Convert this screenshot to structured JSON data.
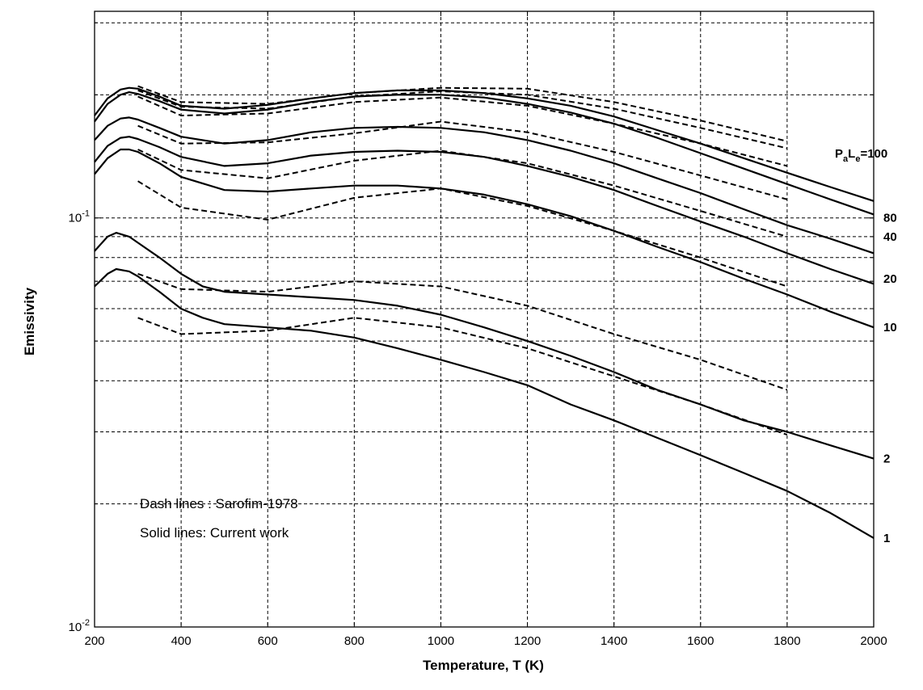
{
  "chart_data": {
    "type": "line",
    "xlabel": "Temperature, T (K)",
    "ylabel": "Emissivity",
    "xlim": [
      200,
      2000
    ],
    "ylim": [
      0.01,
      0.32
    ],
    "y_scale": "log",
    "grid": true,
    "x_ticks": [
      "200",
      "400",
      "600",
      "800",
      "1000",
      "1200",
      "1400",
      "1600",
      "1800",
      "2000"
    ],
    "y_ticks": [
      {
        "value": 0.1,
        "base": "10",
        "exp": "-1"
      },
      {
        "value": 0.01,
        "base": "10",
        "exp": "-2"
      }
    ],
    "param_label": {
      "p": "P",
      "p_sub": "a",
      "l": "L",
      "l_sub": "e",
      "value": "=100"
    },
    "end_labels": [
      {
        "text": "80",
        "y": 0.1
      },
      {
        "text": "40",
        "y": 0.09
      },
      {
        "text": "20",
        "y": 0.071
      },
      {
        "text": "10",
        "y": 0.054
      },
      {
        "text": "2",
        "y": 0.0258
      },
      {
        "text": "1",
        "y": 0.0165
      }
    ],
    "legend": {
      "dash": "Dash lines : Sarofim-1978",
      "solid": "Solid lines: Current work"
    },
    "solid_series": [
      {
        "points": [
          [
            200,
            0.178
          ],
          [
            230,
            0.196
          ],
          [
            260,
            0.206
          ],
          [
            280,
            0.208
          ],
          [
            300,
            0.207
          ],
          [
            350,
            0.198
          ],
          [
            400,
            0.188
          ],
          [
            500,
            0.185
          ],
          [
            600,
            0.189
          ],
          [
            700,
            0.196
          ],
          [
            800,
            0.202
          ],
          [
            900,
            0.205
          ],
          [
            1000,
            0.205
          ],
          [
            1100,
            0.202
          ],
          [
            1200,
            0.196
          ],
          [
            1300,
            0.188
          ],
          [
            1400,
            0.177
          ],
          [
            1500,
            0.164
          ],
          [
            1600,
            0.152
          ],
          [
            1700,
            0.14
          ],
          [
            1800,
            0.129
          ],
          [
            1900,
            0.119
          ],
          [
            2000,
            0.11
          ]
        ]
      },
      {
        "points": [
          [
            200,
            0.172
          ],
          [
            230,
            0.19
          ],
          [
            260,
            0.2
          ],
          [
            280,
            0.203
          ],
          [
            300,
            0.201
          ],
          [
            350,
            0.193
          ],
          [
            400,
            0.184
          ],
          [
            500,
            0.18
          ],
          [
            600,
            0.184
          ],
          [
            700,
            0.192
          ],
          [
            800,
            0.198
          ],
          [
            900,
            0.2
          ],
          [
            1000,
            0.2
          ],
          [
            1100,
            0.197
          ],
          [
            1200,
            0.19
          ],
          [
            1300,
            0.181
          ],
          [
            1400,
            0.17
          ],
          [
            1500,
            0.157
          ],
          [
            1600,
            0.144
          ],
          [
            1700,
            0.132
          ],
          [
            1800,
            0.121
          ],
          [
            1900,
            0.111
          ],
          [
            2000,
            0.102
          ]
        ]
      },
      {
        "points": [
          [
            200,
            0.155
          ],
          [
            230,
            0.168
          ],
          [
            260,
            0.175
          ],
          [
            280,
            0.176
          ],
          [
            300,
            0.174
          ],
          [
            350,
            0.166
          ],
          [
            400,
            0.158
          ],
          [
            500,
            0.152
          ],
          [
            600,
            0.155
          ],
          [
            700,
            0.162
          ],
          [
            800,
            0.166
          ],
          [
            900,
            0.167
          ],
          [
            1000,
            0.166
          ],
          [
            1100,
            0.162
          ],
          [
            1200,
            0.155
          ],
          [
            1300,
            0.146
          ],
          [
            1400,
            0.136
          ],
          [
            1500,
            0.125
          ],
          [
            1600,
            0.115
          ],
          [
            1700,
            0.105
          ],
          [
            1800,
            0.096
          ],
          [
            1900,
            0.089
          ],
          [
            2000,
            0.082
          ]
        ]
      },
      {
        "points": [
          [
            200,
            0.137
          ],
          [
            230,
            0.15
          ],
          [
            260,
            0.157
          ],
          [
            280,
            0.158
          ],
          [
            300,
            0.156
          ],
          [
            350,
            0.149
          ],
          [
            400,
            0.141
          ],
          [
            500,
            0.134
          ],
          [
            600,
            0.136
          ],
          [
            700,
            0.142
          ],
          [
            800,
            0.145
          ],
          [
            900,
            0.146
          ],
          [
            1000,
            0.145
          ],
          [
            1100,
            0.141
          ],
          [
            1200,
            0.134
          ],
          [
            1300,
            0.126
          ],
          [
            1400,
            0.117
          ],
          [
            1500,
            0.107
          ],
          [
            1600,
            0.098
          ],
          [
            1700,
            0.09
          ],
          [
            1800,
            0.082
          ],
          [
            1900,
            0.075
          ],
          [
            2000,
            0.069
          ]
        ]
      },
      {
        "points": [
          [
            200,
            0.128
          ],
          [
            230,
            0.14
          ],
          [
            260,
            0.147
          ],
          [
            280,
            0.147
          ],
          [
            300,
            0.145
          ],
          [
            350,
            0.136
          ],
          [
            400,
            0.126
          ],
          [
            500,
            0.117
          ],
          [
            600,
            0.116
          ],
          [
            700,
            0.118
          ],
          [
            800,
            0.12
          ],
          [
            900,
            0.12
          ],
          [
            1000,
            0.118
          ],
          [
            1100,
            0.114
          ],
          [
            1200,
            0.108
          ],
          [
            1300,
            0.101
          ],
          [
            1400,
            0.093
          ],
          [
            1500,
            0.085
          ],
          [
            1600,
            0.078
          ],
          [
            1700,
            0.071
          ],
          [
            1800,
            0.065
          ],
          [
            1900,
            0.059
          ],
          [
            2000,
            0.054
          ]
        ]
      },
      {
        "points": [
          [
            200,
            0.083
          ],
          [
            230,
            0.09
          ],
          [
            250,
            0.092
          ],
          [
            280,
            0.09
          ],
          [
            300,
            0.087
          ],
          [
            350,
            0.08
          ],
          [
            400,
            0.073
          ],
          [
            450,
            0.068
          ],
          [
            500,
            0.066
          ],
          [
            600,
            0.065
          ],
          [
            700,
            0.064
          ],
          [
            800,
            0.063
          ],
          [
            900,
            0.061
          ],
          [
            1000,
            0.058
          ],
          [
            1100,
            0.054
          ],
          [
            1200,
            0.05
          ],
          [
            1300,
            0.046
          ],
          [
            1400,
            0.042
          ],
          [
            1500,
            0.038
          ],
          [
            1600,
            0.035
          ],
          [
            1700,
            0.032
          ],
          [
            1800,
            0.03
          ],
          [
            1900,
            0.0278
          ],
          [
            2000,
            0.0258
          ]
        ]
      },
      {
        "points": [
          [
            200,
            0.068
          ],
          [
            230,
            0.073
          ],
          [
            250,
            0.075
          ],
          [
            280,
            0.074
          ],
          [
            300,
            0.072
          ],
          [
            350,
            0.066
          ],
          [
            400,
            0.06
          ],
          [
            450,
            0.057
          ],
          [
            500,
            0.055
          ],
          [
            600,
            0.054
          ],
          [
            700,
            0.053
          ],
          [
            800,
            0.051
          ],
          [
            900,
            0.048
          ],
          [
            1000,
            0.045
          ],
          [
            1100,
            0.042
          ],
          [
            1200,
            0.039
          ],
          [
            1300,
            0.035
          ],
          [
            1400,
            0.032
          ],
          [
            1500,
            0.029
          ],
          [
            1600,
            0.0263
          ],
          [
            1700,
            0.0238
          ],
          [
            1800,
            0.0215
          ],
          [
            1900,
            0.019
          ],
          [
            2000,
            0.0165
          ]
        ]
      }
    ],
    "dash_series": [
      {
        "points": [
          [
            300,
            0.21
          ],
          [
            400,
            0.192
          ],
          [
            600,
            0.19
          ],
          [
            800,
            0.202
          ],
          [
            1000,
            0.208
          ],
          [
            1200,
            0.207
          ],
          [
            1400,
            0.192
          ],
          [
            1600,
            0.173
          ],
          [
            1800,
            0.154
          ]
        ]
      },
      {
        "points": [
          [
            300,
            0.205
          ],
          [
            400,
            0.187
          ],
          [
            600,
            0.185
          ],
          [
            800,
            0.198
          ],
          [
            1000,
            0.204
          ],
          [
            1200,
            0.2
          ],
          [
            1400,
            0.185
          ],
          [
            1600,
            0.166
          ],
          [
            1800,
            0.148
          ]
        ]
      },
      {
        "points": [
          [
            300,
            0.198
          ],
          [
            400,
            0.178
          ],
          [
            600,
            0.18
          ],
          [
            800,
            0.192
          ],
          [
            1000,
            0.197
          ],
          [
            1200,
            0.188
          ],
          [
            1400,
            0.17
          ],
          [
            1600,
            0.152
          ],
          [
            1800,
            0.134
          ]
        ]
      },
      {
        "points": [
          [
            300,
            0.168
          ],
          [
            400,
            0.152
          ],
          [
            600,
            0.153
          ],
          [
            800,
            0.161
          ],
          [
            1000,
            0.172
          ],
          [
            1200,
            0.162
          ],
          [
            1400,
            0.145
          ],
          [
            1600,
            0.127
          ],
          [
            1800,
            0.111
          ]
        ]
      },
      {
        "points": [
          [
            300,
            0.147
          ],
          [
            400,
            0.131
          ],
          [
            600,
            0.125
          ],
          [
            800,
            0.138
          ],
          [
            1000,
            0.146
          ],
          [
            1200,
            0.136
          ],
          [
            1400,
            0.12
          ],
          [
            1600,
            0.104
          ],
          [
            1800,
            0.09
          ]
        ]
      },
      {
        "points": [
          [
            300,
            0.123
          ],
          [
            400,
            0.106
          ],
          [
            600,
            0.099
          ],
          [
            800,
            0.112
          ],
          [
            1000,
            0.118
          ],
          [
            1200,
            0.107
          ],
          [
            1400,
            0.093
          ],
          [
            1600,
            0.08
          ],
          [
            1800,
            0.068
          ]
        ]
      },
      {
        "points": [
          [
            300,
            0.073
          ],
          [
            400,
            0.067
          ],
          [
            600,
            0.066
          ],
          [
            800,
            0.07
          ],
          [
            1000,
            0.068
          ],
          [
            1200,
            0.061
          ],
          [
            1400,
            0.052
          ],
          [
            1600,
            0.045
          ],
          [
            1800,
            0.038
          ]
        ]
      },
      {
        "points": [
          [
            300,
            0.057
          ],
          [
            400,
            0.052
          ],
          [
            600,
            0.053
          ],
          [
            800,
            0.057
          ],
          [
            1000,
            0.054
          ],
          [
            1200,
            0.048
          ],
          [
            1400,
            0.041
          ],
          [
            1600,
            0.035
          ],
          [
            1800,
            0.0295
          ]
        ]
      }
    ]
  }
}
